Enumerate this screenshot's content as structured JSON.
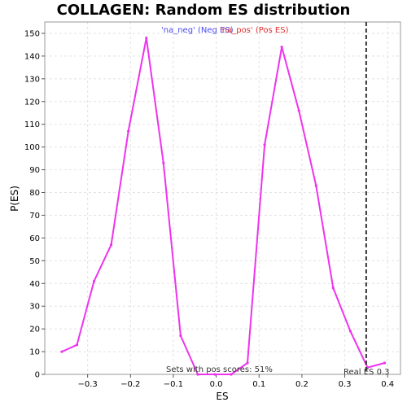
{
  "chart_data": {
    "type": "line",
    "title": "COLLAGEN: Random ES distribution",
    "xlabel": "ES",
    "ylabel": "P(ES)",
    "xlim": [
      -0.4,
      0.43
    ],
    "ylim": [
      0,
      155
    ],
    "xticks": [
      -0.3,
      -0.2,
      -0.1,
      0.0,
      0.1,
      0.2,
      0.3,
      0.4
    ],
    "xtick_labels": [
      "−0.3",
      "−0.2",
      "−0.1",
      "0.0",
      "0.1",
      "0.2",
      "0.3",
      "0.4"
    ],
    "yticks": [
      0,
      10,
      20,
      30,
      40,
      50,
      60,
      70,
      80,
      90,
      100,
      110,
      120,
      130,
      140,
      150
    ],
    "grid": true,
    "legend": {
      "placement": "top-center",
      "entries": [
        {
          "text": "'na_neg' (Neg ES)",
          "color": "#4a4af0"
        },
        {
          "text": "'na_pos' (Pos ES)",
          "color": "#e03030"
        }
      ]
    },
    "series": [
      {
        "color": "#ee33ee",
        "x": [
          -0.36,
          -0.325,
          -0.285,
          -0.245,
          -0.205,
          -0.163,
          -0.123,
          -0.083,
          -0.043,
          -0.003,
          0.035,
          0.073,
          0.113,
          0.153,
          0.193,
          0.233,
          0.273,
          0.313,
          0.353,
          0.393
        ],
        "y": [
          10,
          13,
          41,
          57,
          107,
          148,
          93,
          17,
          0,
          0,
          0,
          5,
          101,
          144,
          116,
          83,
          38,
          19,
          3,
          5
        ]
      }
    ],
    "vline": {
      "x": 0.35,
      "color": "#333333",
      "style": "dashed"
    },
    "annotations": {
      "sets_with_pos": "Sets with pos scores: 51%",
      "real_es": "Real ES 0.3"
    }
  }
}
